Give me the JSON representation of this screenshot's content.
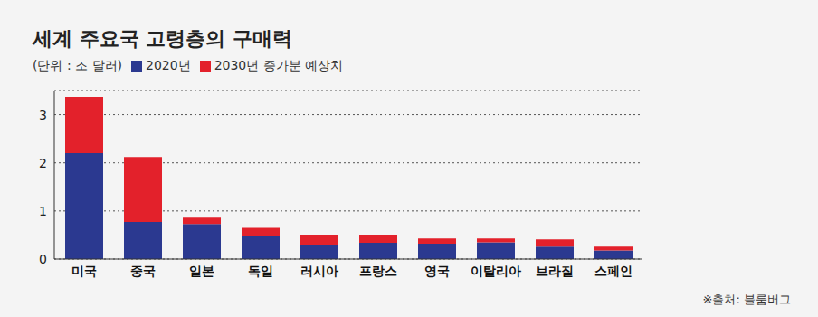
{
  "chart_data": {
    "type": "bar",
    "title": "세계 주요국 고령층의 구매력",
    "subtitle": "(단위 : 조 달러)",
    "source": "※출처: 블룸버그",
    "categories": [
      "미국",
      "중국",
      "일본",
      "독일",
      "러시아",
      "프랑스",
      "영국",
      "이탈리아",
      "브라질",
      "스페인"
    ],
    "series": [
      {
        "name": "2020년",
        "color": "#2b3990",
        "values": [
          2.2,
          0.77,
          0.73,
          0.47,
          0.3,
          0.34,
          0.32,
          0.35,
          0.26,
          0.18
        ]
      },
      {
        "name": "2030년 증가분 예상치",
        "color": "#e3212b",
        "values": [
          1.17,
          1.35,
          0.13,
          0.18,
          0.19,
          0.15,
          0.11,
          0.08,
          0.15,
          0.08
        ]
      }
    ],
    "ylim": [
      0,
      3.5
    ],
    "yticks": [
      0,
      1,
      2,
      3
    ],
    "grid": true,
    "stacked": true,
    "legend": "top-left"
  }
}
